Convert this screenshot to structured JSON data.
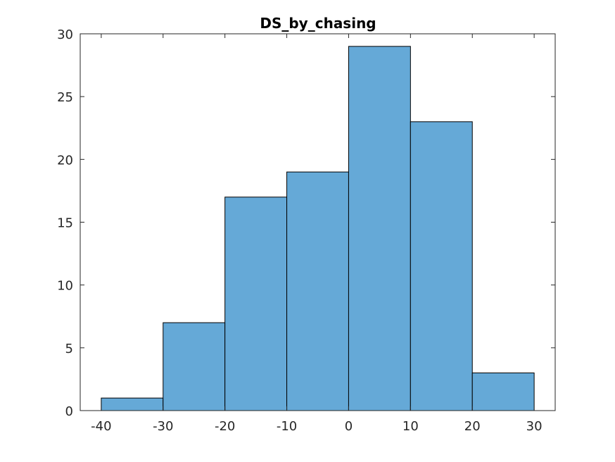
{
  "chart_data": {
    "type": "bar",
    "title": "DS_by_chasing",
    "xlabel": "",
    "ylabel": "",
    "bin_edges": [
      -40,
      -30,
      -20,
      -10,
      0,
      10,
      20,
      30
    ],
    "values": [
      1,
      7,
      17,
      19,
      29,
      23,
      3
    ],
    "xlim": [
      -43.4,
      33.4
    ],
    "ylim": [
      0,
      30
    ],
    "xticks": [
      -40,
      -30,
      -20,
      -10,
      0,
      10,
      20,
      30
    ],
    "xtick_labels": [
      "-40",
      "-30",
      "-20",
      "-10",
      "0",
      "10",
      "20",
      "30"
    ],
    "yticks": [
      0,
      5,
      10,
      15,
      20,
      25,
      30
    ],
    "ytick_labels": [
      "0",
      "5",
      "10",
      "15",
      "20",
      "25",
      "30"
    ],
    "grid": false,
    "legend": "none",
    "colors": {
      "bar_fill": "#65a9d7",
      "bar_edge": "#000000",
      "axes": "#262626"
    }
  }
}
